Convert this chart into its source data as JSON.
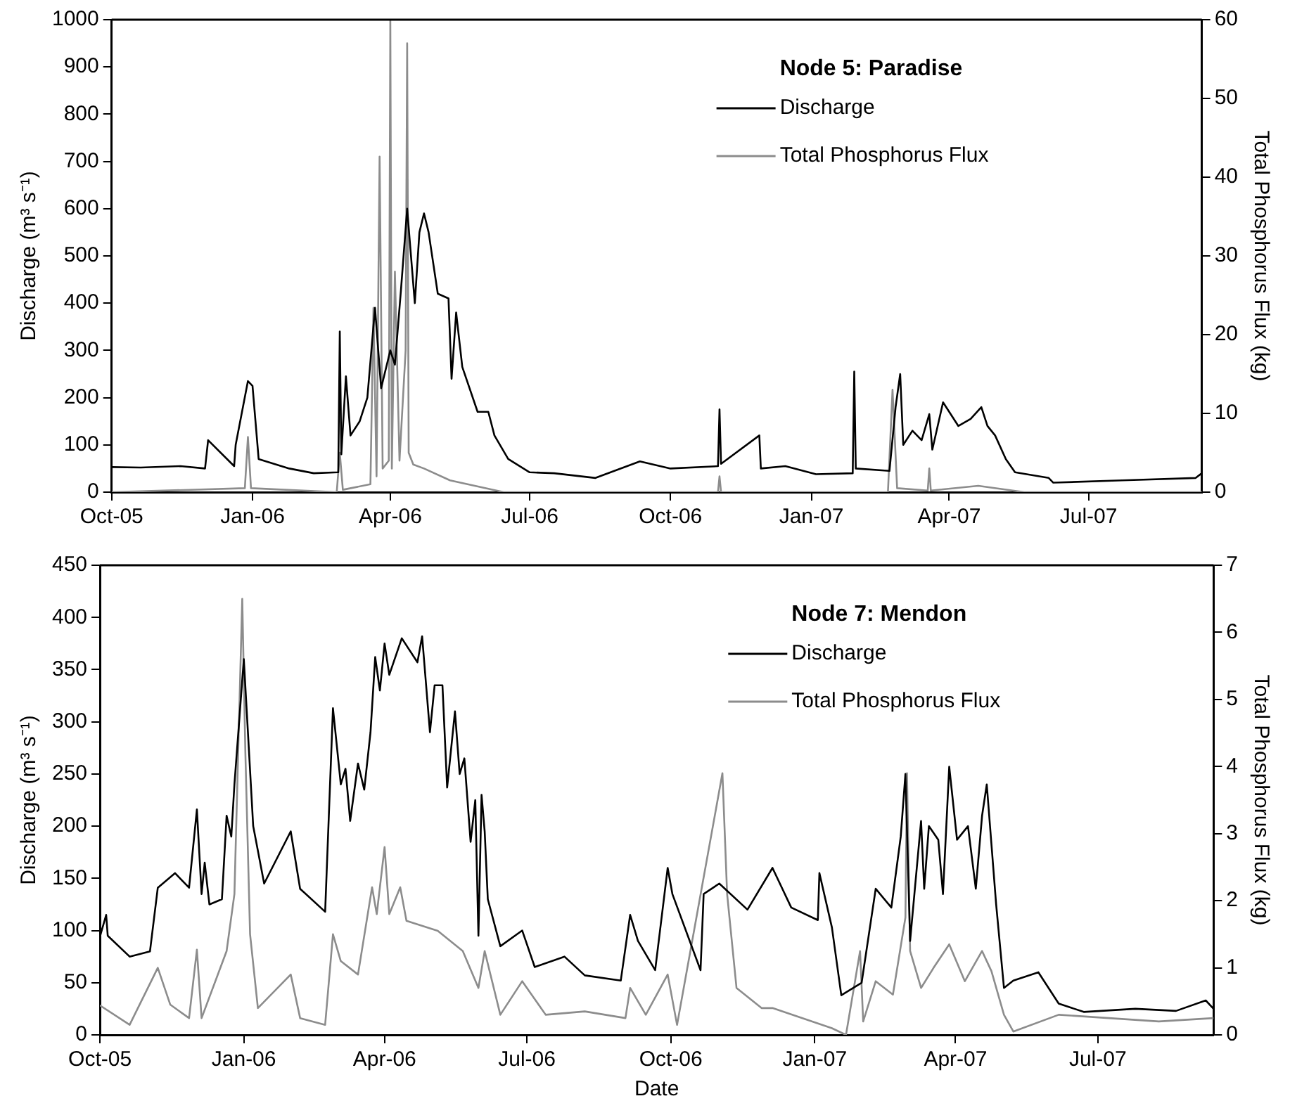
{
  "chart_data": [
    {
      "type": "line",
      "legend_title": "Node 5: Paradise",
      "ylabel": "Discharge (m³ s⁻¹)",
      "y2label": "Total Phosphorus Flux (kg)",
      "legend": "top right",
      "grid": false,
      "marker": "none",
      "line_style": "solid",
      "xlim": [
        "2005-10-01",
        "2007-09-13"
      ],
      "xticks": [
        {
          "value": "2005-10-01",
          "label": "Oct-05"
        },
        {
          "value": "2006-01-01",
          "label": "Jan-06"
        },
        {
          "value": "2006-04-01",
          "label": "Apr-06"
        },
        {
          "value": "2006-07-01",
          "label": "Jul-06"
        },
        {
          "value": "2006-10-01",
          "label": "Oct-06"
        },
        {
          "value": "2007-01-01",
          "label": "Jan-07"
        },
        {
          "value": "2007-04-01",
          "label": "Apr-07"
        },
        {
          "value": "2007-07-01",
          "label": "Jul-07"
        }
      ],
      "ylim": [
        0,
        1000
      ],
      "yticks": [
        0,
        100,
        200,
        300,
        400,
        500,
        600,
        700,
        800,
        900,
        1000
      ],
      "y2lim": [
        0,
        60
      ],
      "y2ticks": [
        0,
        10,
        20,
        30,
        40,
        50,
        60
      ],
      "series": [
        {
          "name": "Discharge",
          "color": "#000000",
          "x": [
            "2005-10-01",
            "2005-10-20",
            "2005-11-15",
            "2005-12-01",
            "2005-12-03",
            "2005-12-20",
            "2005-12-21",
            "2005-12-29",
            "2006-01-01",
            "2006-01-05",
            "2006-01-25",
            "2006-02-10",
            "2006-02-26",
            "2006-02-27",
            "2006-02-28",
            "2006-03-03",
            "2006-03-06",
            "2006-03-12",
            "2006-03-17",
            "2006-03-22",
            "2006-03-26",
            "2006-04-01",
            "2006-04-04",
            "2006-04-08",
            "2006-04-12",
            "2006-04-17",
            "2006-04-20",
            "2006-04-23",
            "2006-04-26",
            "2006-05-02",
            "2006-05-09",
            "2006-05-11",
            "2006-05-14",
            "2006-05-18",
            "2006-05-28",
            "2006-06-04",
            "2006-06-08",
            "2006-06-17",
            "2006-07-01",
            "2006-07-17",
            "2006-08-13",
            "2006-09-11",
            "2006-10-01",
            "2006-11-01",
            "2006-11-02",
            "2006-11-03",
            "2006-11-28",
            "2006-11-29",
            "2006-12-15",
            "2007-01-04",
            "2007-01-28",
            "2007-01-29",
            "2007-01-30",
            "2007-02-21",
            "2007-02-25",
            "2007-02-28",
            "2007-03-02",
            "2007-03-08",
            "2007-03-14",
            "2007-03-19",
            "2007-03-21",
            "2007-03-28",
            "2007-04-07",
            "2007-04-15",
            "2007-04-22",
            "2007-04-26",
            "2007-05-01",
            "2007-05-08",
            "2007-05-14",
            "2007-06-05",
            "2007-06-08",
            "2007-07-23",
            "2007-09-09",
            "2007-09-13"
          ],
          "values": [
            53,
            52,
            55,
            50,
            110,
            55,
            100,
            235,
            225,
            70,
            50,
            40,
            42,
            340,
            80,
            245,
            120,
            150,
            200,
            390,
            220,
            300,
            270,
            430,
            600,
            400,
            550,
            590,
            550,
            420,
            410,
            240,
            380,
            265,
            170,
            170,
            120,
            70,
            42,
            40,
            30,
            65,
            50,
            55,
            175,
            60,
            120,
            50,
            55,
            38,
            40,
            255,
            50,
            45,
            180,
            250,
            100,
            130,
            110,
            165,
            90,
            190,
            140,
            155,
            180,
            140,
            120,
            70,
            42,
            30,
            20,
            25,
            30,
            40
          ]
        },
        {
          "name": "Total Phosphorus Flux",
          "color": "#8c8c8c",
          "axis": "y2",
          "x": [
            "2005-10-01",
            "2005-12-27",
            "2005-12-29",
            "2005-12-31",
            "2006-02-25",
            "2006-02-27",
            "2006-03-01",
            "2006-03-19",
            "2006-03-21",
            "2006-03-23",
            "2006-03-25",
            "2006-03-27",
            "2006-03-31",
            "2006-04-01",
            "2006-04-02",
            "2006-04-04",
            "2006-04-07",
            "2006-04-11",
            "2006-04-12",
            "2006-04-13",
            "2006-04-16",
            "2006-04-23",
            "2006-05-10",
            "2006-06-14",
            "2006-11-01",
            "2006-11-02",
            "2006-11-03",
            "2007-02-20",
            "2007-02-23",
            "2007-02-26",
            "2007-03-18",
            "2007-03-19",
            "2007-03-20",
            "2007-04-20",
            "2007-05-20",
            "2007-09-13"
          ],
          "values": [
            0,
            0.5,
            7,
            0.5,
            0,
            5,
            0.3,
            1,
            23.4,
            2,
            42.6,
            3,
            4,
            60,
            3,
            28,
            4,
            18,
            57,
            5,
            3.5,
            3,
            1.5,
            0,
            0,
            2,
            0,
            0,
            13,
            0.5,
            0.2,
            3,
            0.2,
            0.8,
            0,
            0
          ]
        }
      ]
    },
    {
      "type": "line",
      "legend_title": "Node 7: Mendon",
      "xlabel": "Date",
      "ylabel": "Discharge (m³ s⁻¹)",
      "y2label": "Total Phosphorus Flux (kg)",
      "legend": "top right",
      "grid": false,
      "marker": "none",
      "line_style": "solid",
      "xlim": [
        "2005-10-01",
        "2007-09-13"
      ],
      "xticks": [
        {
          "value": "2005-10-01",
          "label": "Oct-05"
        },
        {
          "value": "2006-01-01",
          "label": "Jan-06"
        },
        {
          "value": "2006-04-01",
          "label": "Apr-06"
        },
        {
          "value": "2006-07-01",
          "label": "Jul-06"
        },
        {
          "value": "2006-10-01",
          "label": "Oct-06"
        },
        {
          "value": "2007-01-01",
          "label": "Jan-07"
        },
        {
          "value": "2007-04-01",
          "label": "Apr-07"
        },
        {
          "value": "2007-07-01",
          "label": "Jul-07"
        }
      ],
      "ylim": [
        0,
        450
      ],
      "yticks": [
        0,
        50,
        100,
        150,
        200,
        250,
        300,
        350,
        400,
        450
      ],
      "y2lim": [
        0,
        7
      ],
      "y2ticks": [
        0,
        1,
        2,
        3,
        4,
        5,
        6,
        7
      ],
      "series": [
        {
          "name": "Discharge",
          "color": "#000000",
          "x": [
            "2005-10-01",
            "2005-10-05",
            "2005-10-06",
            "2005-10-20",
            "2005-11-02",
            "2005-11-07",
            "2005-11-18",
            "2005-11-27",
            "2005-12-02",
            "2005-12-05",
            "2005-12-07",
            "2005-12-10",
            "2005-12-18",
            "2005-12-21",
            "2005-12-24",
            "2005-12-26",
            "2006-01-01",
            "2006-01-07",
            "2006-01-14",
            "2006-01-31",
            "2006-02-06",
            "2006-02-22",
            "2006-02-27",
            "2006-03-04",
            "2006-03-07",
            "2006-03-10",
            "2006-03-15",
            "2006-03-19",
            "2006-03-23",
            "2006-03-26",
            "2006-03-29",
            "2006-04-01",
            "2006-04-04",
            "2006-04-12",
            "2006-04-22",
            "2006-04-25",
            "2006-04-30",
            "2006-05-03",
            "2006-05-08",
            "2006-05-11",
            "2006-05-16",
            "2006-05-19",
            "2006-05-22",
            "2006-05-26",
            "2006-05-29",
            "2006-05-31",
            "2006-06-02",
            "2006-06-04",
            "2006-06-06",
            "2006-06-14",
            "2006-06-28",
            "2006-07-06",
            "2006-07-25",
            "2006-08-07",
            "2006-08-30",
            "2006-09-05",
            "2006-09-10",
            "2006-09-21",
            "2006-09-29",
            "2006-10-02",
            "2006-10-20",
            "2006-10-22",
            "2006-11-01",
            "2006-11-19",
            "2006-12-05",
            "2006-12-17",
            "2007-01-03",
            "2007-01-04",
            "2007-01-12",
            "2007-01-18",
            "2007-01-31",
            "2007-02-09",
            "2007-02-19",
            "2007-02-25",
            "2007-02-28",
            "2007-03-03",
            "2007-03-10",
            "2007-03-12",
            "2007-03-15",
            "2007-03-21",
            "2007-03-24",
            "2007-03-28",
            "2007-04-02",
            "2007-04-09",
            "2007-04-14",
            "2007-04-18",
            "2007-04-21",
            "2007-04-27",
            "2007-05-02",
            "2007-05-08",
            "2007-05-24",
            "2007-06-06",
            "2007-06-22",
            "2007-07-25",
            "2007-08-20",
            "2007-09-08",
            "2007-09-13"
          ],
          "values": [
            94,
            115,
            95,
            75,
            80,
            141,
            155,
            141,
            216,
            135,
            165,
            125,
            130,
            210,
            190,
            240,
            360,
            200,
            145,
            195,
            140,
            118,
            313,
            240,
            255,
            205,
            260,
            235,
            290,
            362,
            330,
            375,
            345,
            380,
            357,
            382,
            290,
            335,
            335,
            237,
            310,
            250,
            265,
            185,
            225,
            95,
            230,
            195,
            130,
            85,
            100,
            65,
            75,
            57,
            52,
            115,
            90,
            62,
            160,
            135,
            62,
            135,
            145,
            120,
            160,
            122,
            110,
            155,
            103,
            38,
            50,
            140,
            122,
            190,
            250,
            90,
            205,
            140,
            200,
            187,
            135,
            257,
            187,
            200,
            140,
            210,
            240,
            125,
            45,
            52,
            60,
            30,
            22,
            25,
            23,
            33,
            25
          ]
        },
        {
          "name": "Total Phosphorus Flux",
          "color": "#8c8c8c",
          "axis": "y2",
          "x": [
            "2005-10-01",
            "2005-10-20",
            "2005-11-07",
            "2005-11-15",
            "2005-11-27",
            "2005-12-02",
            "2005-12-05",
            "2005-12-21",
            "2005-12-26",
            "2005-12-31",
            "2006-01-02",
            "2006-01-05",
            "2006-01-10",
            "2006-01-31",
            "2006-02-06",
            "2006-02-22",
            "2006-02-27",
            "2006-03-04",
            "2006-03-15",
            "2006-03-24",
            "2006-03-27",
            "2006-04-01",
            "2006-04-04",
            "2006-04-11",
            "2006-04-15",
            "2006-05-05",
            "2006-05-21",
            "2006-05-31",
            "2006-06-04",
            "2006-06-14",
            "2006-06-28",
            "2006-07-13",
            "2006-08-07",
            "2006-09-02",
            "2006-09-05",
            "2006-09-15",
            "2006-09-29",
            "2006-10-05",
            "2006-11-03",
            "2006-11-06",
            "2006-11-12",
            "2006-11-28",
            "2006-12-05",
            "2007-01-12",
            "2007-01-21",
            "2007-01-30",
            "2007-02-01",
            "2007-02-09",
            "2007-02-20",
            "2007-02-28",
            "2007-03-01",
            "2007-03-03",
            "2007-03-10",
            "2007-03-18",
            "2007-03-28",
            "2007-04-07",
            "2007-04-18",
            "2007-04-24",
            "2007-05-02",
            "2007-05-08",
            "2007-06-06",
            "2007-07-08",
            "2007-08-09",
            "2007-09-13"
          ],
          "values": [
            0.44,
            0.15,
            1.0,
            0.45,
            0.25,
            1.27,
            0.25,
            1.25,
            2.1,
            6.5,
            4.2,
            1.5,
            0.4,
            0.9,
            0.25,
            0.15,
            1.5,
            1.1,
            0.9,
            2.2,
            1.8,
            2.8,
            1.8,
            2.2,
            1.7,
            1.55,
            1.25,
            0.7,
            1.25,
            0.3,
            0.8,
            0.3,
            0.35,
            0.25,
            0.7,
            0.3,
            0.9,
            0.15,
            3.9,
            2.1,
            0.7,
            0.4,
            0.4,
            0.1,
            0,
            1.25,
            0.2,
            0.8,
            0.6,
            1.75,
            3.9,
            1.25,
            0.7,
            1.0,
            1.35,
            0.8,
            1.25,
            0.95,
            0.3,
            0.05,
            0.3,
            0.25,
            0.2,
            0.25
          ]
        }
      ]
    }
  ]
}
